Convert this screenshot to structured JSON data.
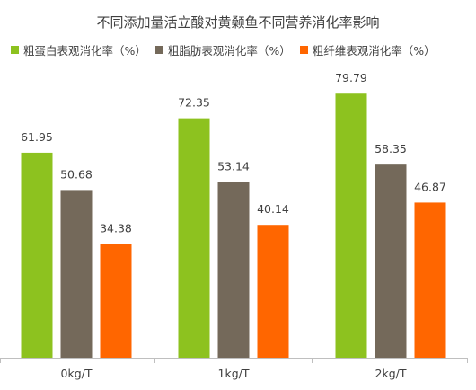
{
  "chart_data": {
    "type": "bar",
    "title": "不同添加量活立酸对黄颡鱼不同营养消化率影响",
    "categories": [
      "0kg/T",
      "1kg/T",
      "2kg/T"
    ],
    "series": [
      {
        "name": "粗蛋白表观消化率（%）",
        "color": "#8DC21F",
        "values": [
          61.95,
          72.35,
          79.79
        ]
      },
      {
        "name": "粗脂肪表观消化率（%）",
        "color": "#74695A",
        "values": [
          50.68,
          53.14,
          58.35
        ]
      },
      {
        "name": "粗纤维表观消化率（%）",
        "color": "#FF6600",
        "values": [
          34.38,
          40.14,
          46.87
        ]
      }
    ],
    "data_labels": [
      [
        "61.95",
        "50.68",
        "34.38"
      ],
      [
        "72.35",
        "53.14",
        "40.14"
      ],
      [
        "79.79",
        "58.35",
        "46.87"
      ]
    ],
    "ylim": [
      0,
      88
    ],
    "grid": false,
    "legend_position": "top"
  }
}
